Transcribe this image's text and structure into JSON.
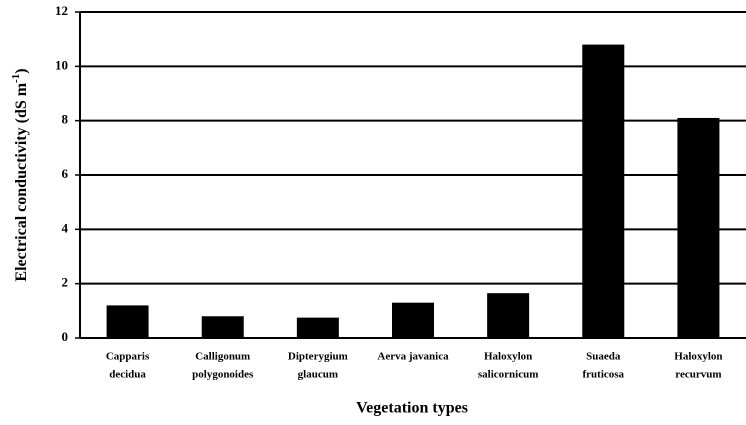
{
  "chart_data": {
    "type": "bar",
    "x_label": "Vegetation types",
    "y_label": [
      "Electrical conductivity (dS m",
      "-1",
      ")"
    ],
    "categories": [
      [
        "Capparis",
        "decidua"
      ],
      [
        "Calligonum",
        "polygonoides"
      ],
      [
        "Dipterygium",
        "glaucum"
      ],
      [
        "Aerva javanica"
      ],
      [
        "Haloxylon",
        "salicornicum"
      ],
      [
        "Suaeda",
        "fruticosa"
      ],
      [
        "Haloxylon",
        "recurvum"
      ]
    ],
    "values": [
      1.2,
      0.8,
      0.75,
      1.3,
      1.65,
      10.8,
      8.1
    ],
    "color": "#000000",
    "ylim": [
      0,
      12
    ],
    "yticks": [
      0,
      2,
      4,
      6,
      8,
      10,
      12
    ],
    "grid": true
  }
}
